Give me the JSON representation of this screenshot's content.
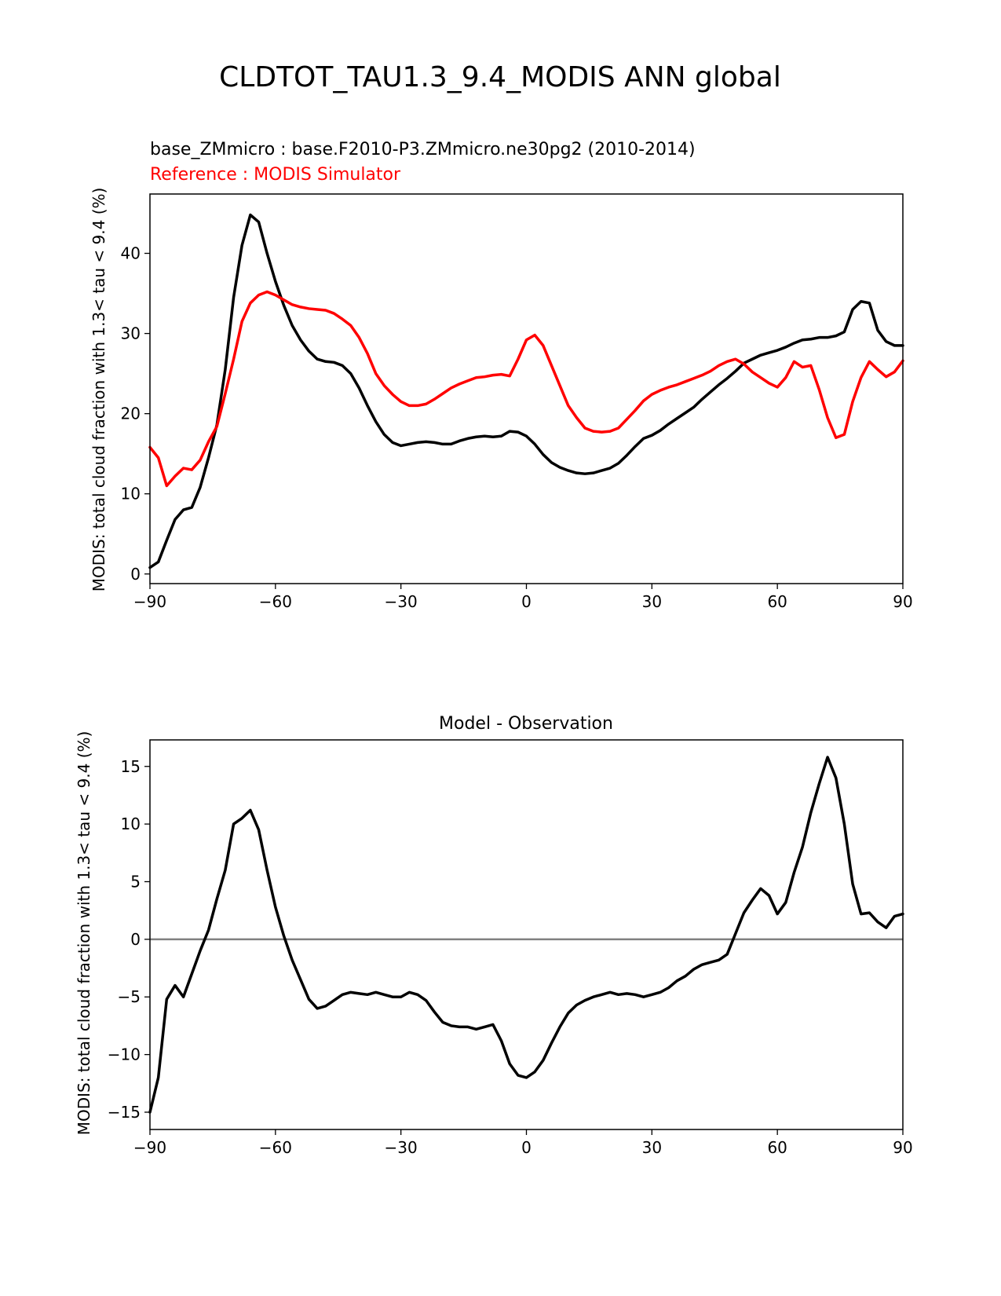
{
  "figure": {
    "suptitle": "CLDTOT_TAU1.3_9.4_MODIS ANN global"
  },
  "chart_data": [
    {
      "type": "line",
      "title": "",
      "model_label": "base_ZMmicro : base.F2010-P3.ZMmicro.ne30pg2 (2010-2014)",
      "reference_label": "Reference : MODIS Simulator",
      "xlabel": "",
      "ylabel": "MODIS: total cloud fraction with 1.3< tau < 9.4 (%)",
      "xlim": [
        -90,
        90
      ],
      "ylim": [
        -1.2,
        47.4
      ],
      "xticks": [
        -90,
        -60,
        -30,
        0,
        30,
        60,
        90
      ],
      "xtick_labels": [
        "−90",
        "−60",
        "−30",
        "0",
        "30",
        "60",
        "90"
      ],
      "yticks": [
        0,
        10,
        20,
        30,
        40
      ],
      "ytick_labels": [
        "0",
        "10",
        "20",
        "30",
        "40"
      ],
      "grid": false,
      "series": [
        {
          "role": "model",
          "color": "#000000",
          "x": [
            -90,
            -88,
            -86,
            -84,
            -82,
            -80,
            -78,
            -76,
            -74,
            -72,
            -70,
            -68,
            -66,
            -64,
            -62,
            -60,
            -58,
            -56,
            -54,
            -52,
            -50,
            -48,
            -46,
            -44,
            -42,
            -40,
            -38,
            -36,
            -34,
            -32,
            -30,
            -28,
            -26,
            -24,
            -22,
            -20,
            -18,
            -16,
            -14,
            -12,
            -10,
            -8,
            -6,
            -4,
            -2,
            0,
            2,
            4,
            6,
            8,
            10,
            12,
            14,
            16,
            18,
            20,
            22,
            24,
            26,
            28,
            30,
            32,
            34,
            36,
            38,
            40,
            42,
            44,
            46,
            48,
            50,
            52,
            54,
            56,
            58,
            60,
            62,
            64,
            66,
            68,
            70,
            72,
            74,
            76,
            78,
            80,
            82,
            84,
            86,
            88,
            90
          ],
          "y": [
            0.8,
            1.5,
            4.2,
            6.8,
            8.0,
            8.3,
            10.8,
            14.5,
            18.6,
            25.5,
            34.5,
            41.0,
            44.8,
            43.9,
            40.0,
            36.5,
            33.5,
            31.0,
            29.2,
            27.8,
            26.8,
            26.5,
            26.4,
            26.0,
            25.0,
            23.2,
            21.0,
            19.0,
            17.4,
            16.4,
            16.0,
            16.2,
            16.4,
            16.5,
            16.4,
            16.2,
            16.2,
            16.6,
            16.9,
            17.1,
            17.2,
            17.1,
            17.2,
            17.8,
            17.7,
            17.2,
            16.2,
            14.9,
            13.9,
            13.3,
            12.9,
            12.6,
            12.5,
            12.6,
            12.9,
            13.2,
            13.8,
            14.8,
            15.9,
            16.9,
            17.3,
            17.9,
            18.7,
            19.4,
            20.1,
            20.8,
            21.8,
            22.7,
            23.6,
            24.4,
            25.3,
            26.3,
            26.8,
            27.3,
            27.6,
            27.9,
            28.3,
            28.8,
            29.2,
            29.3,
            29.5,
            29.5,
            29.7,
            30.2,
            33.0,
            34.0,
            33.8,
            30.4,
            29.0,
            28.5,
            28.5
          ],
          "name": ""
        },
        {
          "role": "reference",
          "color": "#ff0000",
          "x": [
            -90,
            -88,
            -86,
            -84,
            -82,
            -80,
            -78,
            -76,
            -74,
            -72,
            -70,
            -68,
            -66,
            -64,
            -62,
            -60,
            -58,
            -56,
            -54,
            -52,
            -50,
            -48,
            -46,
            -44,
            -42,
            -40,
            -38,
            -36,
            -34,
            -32,
            -30,
            -28,
            -26,
            -24,
            -22,
            -20,
            -18,
            -16,
            -14,
            -12,
            -10,
            -8,
            -6,
            -4,
            -2,
            0,
            2,
            4,
            6,
            8,
            10,
            12,
            14,
            16,
            18,
            20,
            22,
            24,
            26,
            28,
            30,
            32,
            34,
            36,
            38,
            40,
            42,
            44,
            46,
            48,
            50,
            52,
            54,
            56,
            58,
            60,
            62,
            64,
            66,
            68,
            70,
            72,
            74,
            76,
            78,
            80,
            82,
            84,
            86,
            88,
            90
          ],
          "y": [
            15.8,
            14.5,
            11.0,
            12.2,
            13.2,
            13.0,
            14.2,
            16.5,
            18.4,
            22.5,
            26.8,
            31.5,
            33.8,
            34.8,
            35.2,
            34.8,
            34.2,
            33.6,
            33.3,
            33.1,
            33.0,
            32.9,
            32.5,
            31.8,
            31.0,
            29.5,
            27.5,
            25.0,
            23.5,
            22.4,
            21.5,
            21.0,
            21.0,
            21.2,
            21.8,
            22.5,
            23.2,
            23.7,
            24.1,
            24.5,
            24.6,
            24.8,
            24.9,
            24.7,
            26.8,
            29.2,
            29.8,
            28.5,
            26.0,
            23.5,
            21.0,
            19.5,
            18.2,
            17.8,
            17.7,
            17.8,
            18.2,
            19.3,
            20.4,
            21.6,
            22.4,
            22.9,
            23.3,
            23.6,
            24.0,
            24.4,
            24.8,
            25.3,
            26.0,
            26.5,
            26.8,
            26.2,
            25.2,
            24.5,
            23.8,
            23.3,
            24.5,
            26.5,
            25.8,
            26.0,
            23.0,
            19.5,
            17.0,
            17.4,
            21.5,
            24.5,
            26.5,
            25.5,
            24.6,
            25.2,
            26.6
          ],
          "name": ""
        }
      ]
    },
    {
      "type": "line",
      "title": "Model - Observation",
      "xlabel": "",
      "ylabel": "MODIS: total cloud fraction with 1.3< tau < 9.4 (%)",
      "xlim": [
        -90,
        90
      ],
      "ylim": [
        -16.5,
        17.3
      ],
      "xticks": [
        -90,
        -60,
        -30,
        0,
        30,
        60,
        90
      ],
      "xtick_labels": [
        "−90",
        "−60",
        "−30",
        "0",
        "30",
        "60",
        "90"
      ],
      "yticks": [
        -15,
        -10,
        -5,
        0,
        5,
        10,
        15
      ],
      "ytick_labels": [
        "−15",
        "−10",
        "−5",
        "0",
        "5",
        "10",
        "15"
      ],
      "grid": false,
      "zero_line": true,
      "zero_line_color": "#808080",
      "series": [
        {
          "role": "difference",
          "color": "#000000",
          "x": [
            -90,
            -88,
            -86,
            -84,
            -82,
            -80,
            -78,
            -76,
            -74,
            -72,
            -70,
            -68,
            -66,
            -64,
            -62,
            -60,
            -58,
            -56,
            -54,
            -52,
            -50,
            -48,
            -46,
            -44,
            -42,
            -40,
            -38,
            -36,
            -34,
            -32,
            -30,
            -28,
            -26,
            -24,
            -22,
            -20,
            -18,
            -16,
            -14,
            -12,
            -10,
            -8,
            -6,
            -4,
            -2,
            0,
            2,
            4,
            6,
            8,
            10,
            12,
            14,
            16,
            18,
            20,
            22,
            24,
            26,
            28,
            30,
            32,
            34,
            36,
            38,
            40,
            42,
            44,
            46,
            48,
            50,
            52,
            54,
            56,
            58,
            60,
            62,
            64,
            66,
            68,
            70,
            72,
            74,
            76,
            78,
            80,
            82,
            84,
            86,
            88,
            90
          ],
          "y": [
            -15.0,
            -12.0,
            -5.2,
            -4.0,
            -5.0,
            -3.0,
            -1.0,
            0.8,
            3.5,
            6.0,
            10.0,
            10.5,
            11.2,
            9.5,
            6.0,
            2.8,
            0.3,
            -1.8,
            -3.5,
            -5.2,
            -6.0,
            -5.8,
            -5.3,
            -4.8,
            -4.6,
            -4.7,
            -4.8,
            -4.6,
            -4.8,
            -5.0,
            -5.0,
            -4.6,
            -4.8,
            -5.3,
            -6.3,
            -7.2,
            -7.5,
            -7.6,
            -7.6,
            -7.8,
            -7.6,
            -7.4,
            -8.8,
            -10.8,
            -11.8,
            -12.0,
            -11.5,
            -10.5,
            -9.0,
            -7.6,
            -6.4,
            -5.7,
            -5.3,
            -5.0,
            -4.8,
            -4.6,
            -4.8,
            -4.7,
            -4.8,
            -5.0,
            -4.8,
            -4.6,
            -4.2,
            -3.6,
            -3.2,
            -2.6,
            -2.2,
            -2.0,
            -1.8,
            -1.3,
            0.5,
            2.3,
            3.4,
            4.4,
            3.8,
            2.2,
            3.2,
            5.8,
            8.0,
            11.0,
            13.5,
            15.8,
            14.0,
            10.0,
            4.8,
            2.2,
            2.3,
            1.5,
            1.0,
            2.0,
            2.2
          ],
          "name": ""
        }
      ]
    }
  ]
}
